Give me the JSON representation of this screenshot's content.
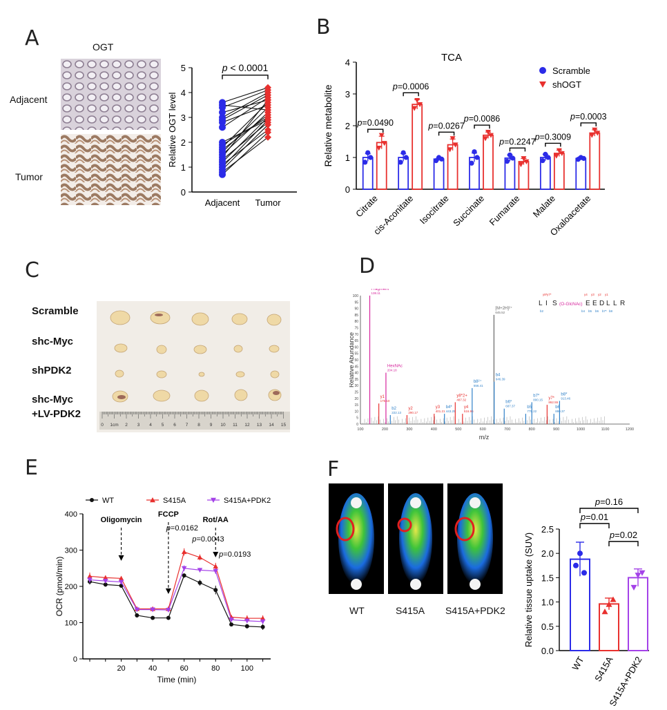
{
  "panels": {
    "A": {
      "letter": "A",
      "ihc_title": "OGT",
      "row_labels": [
        "Adjacent",
        "Tumor"
      ],
      "chart": {
        "type": "scatter",
        "ylabel": "Relative OGT level",
        "ylim": [
          0,
          5
        ],
        "yticks": [
          "0",
          "1",
          "2",
          "3",
          "4",
          "5"
        ],
        "categories": [
          "Adjacent",
          "Tumor"
        ],
        "pvalue": "p < 0.0001",
        "pairs": [
          [
            0.7,
            2.4
          ],
          [
            0.9,
            2.7
          ],
          [
            1.0,
            2.9
          ],
          [
            1.1,
            2.5
          ],
          [
            1.2,
            3.0
          ],
          [
            1.3,
            2.8
          ],
          [
            1.5,
            3.2
          ],
          [
            1.6,
            3.4
          ],
          [
            1.7,
            3.1
          ],
          [
            1.8,
            3.6
          ],
          [
            1.9,
            3.0
          ],
          [
            2.6,
            3.8
          ],
          [
            2.8,
            3.5
          ],
          [
            2.9,
            3.9
          ],
          [
            3.0,
            4.0
          ],
          [
            3.2,
            3.7
          ],
          [
            3.4,
            4.1
          ],
          [
            3.5,
            3.3
          ],
          [
            3.6,
            4.2
          ],
          [
            2.0,
            2.9
          ],
          [
            1.4,
            3.7
          ],
          [
            0.8,
            2.2
          ]
        ],
        "colors": {
          "adjacent": "#2b2be8",
          "tumor": "#e8302e"
        }
      }
    },
    "B": {
      "letter": "B",
      "chart": {
        "type": "bar",
        "title": "TCA",
        "ylabel": "Relative metabolite",
        "ylim": [
          0,
          4
        ],
        "yticks": [
          "0",
          "1",
          "2",
          "3",
          "4"
        ],
        "categories": [
          "Citrate",
          "cis-Aconitate",
          "Isocitrate",
          "Succinate",
          "Fumarate",
          "Malate",
          "Oxaloacetate"
        ],
        "series": [
          {
            "name": "Scramble",
            "color": "#2b2be8",
            "values": [
              1.0,
              1.0,
              0.95,
              1.0,
              0.98,
              1.0,
              0.97
            ],
            "err": [
              0.12,
              0.12,
              0.05,
              0.14,
              0.1,
              0.1,
              0.05
            ],
            "points": [
              [
                0.85,
                1.15,
                1.0
              ],
              [
                0.85,
                1.15,
                1.0
              ],
              [
                0.9,
                1.0,
                0.95
              ],
              [
                0.82,
                1.18,
                1.0
              ],
              [
                0.88,
                1.08,
                0.98
              ],
              [
                0.9,
                1.1,
                1.0
              ],
              [
                0.94,
                1.0,
                0.97
              ]
            ]
          },
          {
            "name": "shOGT",
            "color": "#e8302e",
            "values": [
              1.47,
              2.67,
              1.4,
              1.7,
              0.87,
              1.13,
              1.77
            ],
            "err": [
              0.2,
              0.15,
              0.18,
              0.1,
              0.1,
              0.1,
              0.1
            ],
            "points": [
              [
                1.3,
                1.7,
                1.45
              ],
              [
                2.55,
                2.8,
                2.67
              ],
              [
                1.25,
                1.6,
                1.4
              ],
              [
                1.6,
                1.8,
                1.7
              ],
              [
                0.78,
                0.97,
                0.87
              ],
              [
                1.05,
                1.22,
                1.13
              ],
              [
                1.7,
                1.87,
                1.77
              ]
            ]
          }
        ],
        "pvalues": [
          "p=0.0490",
          "p=0.0006",
          "p=0.0267",
          "p=0.0086",
          "p=0.2247",
          "p=0.3009",
          "p=0.0003"
        ],
        "legend_position": "top-right"
      }
    },
    "C": {
      "letter": "C",
      "row_labels": [
        "Scramble",
        "shc-Myc",
        "shPDK2",
        "shc-Myc",
        "+LV-PDK2"
      ],
      "ruler_labels": [
        "0",
        "1cm",
        "2",
        "3",
        "4",
        "5",
        "6",
        "7",
        "8",
        "9",
        "10",
        "11",
        "12",
        "13",
        "14",
        "15"
      ]
    },
    "D": {
      "letter": "D",
      "chart": {
        "type": "bar",
        "xlabel": "m/z",
        "ylabel": "Relative Abundance",
        "xlim": [
          100,
          1200
        ],
        "ylim": [
          0,
          100
        ],
        "xticks": [
          "100",
          "200",
          "300",
          "400",
          "500",
          "600",
          "700",
          "800",
          "900",
          "1000",
          "1100",
          "1200"
        ],
        "yticks": [
          "0",
          "5",
          "10",
          "15",
          "20",
          "25",
          "30",
          "35",
          "40",
          "45",
          "50",
          "55",
          "60",
          "65",
          "70",
          "75",
          "80",
          "85",
          "90",
          "95",
          "100"
        ],
        "peaks": [
          {
            "mz": 138.11,
            "h": 100,
            "label": "HexNAc\nFragment\n138.11",
            "color": "#d6249c"
          },
          {
            "mz": 204.18,
            "h": 40,
            "label": "HexNAc\n204.18",
            "color": "#d6249c"
          },
          {
            "mz": 175.1,
            "h": 16,
            "label": "y1\n175.10",
            "color": "#e8302e"
          },
          {
            "mz": 222.13,
            "h": 7,
            "label": "b2\n222.13",
            "color": "#2f80c8"
          },
          {
            "mz": 290.17,
            "h": 7,
            "label": "y2\n290.17",
            "color": "#e8302e"
          },
          {
            "mz": 401.21,
            "h": 8,
            "label": "y3\n401.21",
            "color": "#e8302e"
          },
          {
            "mz": 443.25,
            "h": 8,
            "label": "b4*\n443.25",
            "color": "#2f80c8"
          },
          {
            "mz": 487.32,
            "h": 17,
            "label": "y8*2+\n487.32",
            "color": "#e8302e"
          },
          {
            "mz": 516.96,
            "h": 8,
            "label": "y4\n516.96",
            "color": "#e8302e"
          },
          {
            "mz": 556.41,
            "h": 28,
            "label": "b8²⁺\n556.41",
            "color": "#2f80c8"
          },
          {
            "mz": 645.52,
            "h": 85,
            "label": "[M+2H]²⁺\n645.52",
            "color": "#666666"
          },
          {
            "mz": 646.39,
            "h": 33,
            "label": "b4\n646.39",
            "color": "#2f80c8"
          },
          {
            "mz": 687.37,
            "h": 12,
            "label": "b6*\n687.37",
            "color": "#2f80c8"
          },
          {
            "mz": 775.22,
            "h": 8,
            "label": "b5\n775.22",
            "color": "#2f80c8"
          },
          {
            "mz": 800.15,
            "h": 17,
            "label": "b7*\n800.15",
            "color": "#2f80c8"
          },
          {
            "mz": 862.55,
            "h": 15,
            "label": "y7*\n862.55",
            "color": "#e8302e"
          },
          {
            "mz": 890.37,
            "h": 8,
            "label": "b6\n890.37",
            "color": "#2f80c8"
          },
          {
            "mz": 913.46,
            "h": 18,
            "label": "b8*\n913.46",
            "color": "#2f80c8"
          }
        ],
        "sequence": [
          "L",
          "I",
          "S",
          "(O-GlcNAc)",
          "E",
          "E",
          "D",
          "L",
          "L",
          "R"
        ],
        "y_ions": [
          "y8*",
          "y7*",
          "y4",
          "y3",
          "y2",
          "y1"
        ],
        "b_ions": [
          "b2",
          "b4",
          "b5",
          "b6",
          "b7*",
          "b8"
        ]
      }
    },
    "E": {
      "letter": "E",
      "chart": {
        "type": "line",
        "xlabel": "Time (min)",
        "ylabel": "OCR (pmol/min)",
        "xlim": [
          0,
          115
        ],
        "ylim": [
          0,
          400
        ],
        "xticks": [
          "20",
          "40",
          "60",
          "80",
          "100"
        ],
        "yticks": [
          "0",
          "100",
          "200",
          "300",
          "400"
        ],
        "x": [
          0,
          10,
          20,
          30,
          40,
          50,
          60,
          70,
          80,
          90,
          100,
          110
        ],
        "series": [
          {
            "name": "WT",
            "color": "#111111",
            "marker": "circle",
            "values": [
              213,
              205,
              202,
              120,
              113,
              113,
              230,
              210,
              190,
              95,
              90,
              88
            ],
            "err": [
              8,
              6,
              6,
              6,
              5,
              5,
              6,
              8,
              12,
              4,
              6,
              8
            ]
          },
          {
            "name": "S415A",
            "color": "#e8302e",
            "marker": "triangle-up",
            "values": [
              228,
              224,
              222,
              138,
              138,
              138,
              295,
              280,
              255,
              115,
              112,
              112
            ],
            "err": [
              10,
              6,
              6,
              6,
              6,
              6,
              10,
              8,
              10,
              6,
              8,
              8
            ]
          },
          {
            "name": "S415A+PDK2",
            "color": "#a442e8",
            "marker": "triangle-down",
            "values": [
              218,
              215,
              212,
              136,
              136,
              135,
              250,
              245,
              242,
              108,
              105,
              103
            ],
            "err": [
              8,
              6,
              6,
              6,
              6,
              6,
              8,
              6,
              8,
              6,
              6,
              6
            ]
          }
        ],
        "injections": [
          {
            "label": "Oligomycin",
            "x": 20
          },
          {
            "label": "FCCP",
            "x": 50
          },
          {
            "label": "Rot/AA",
            "x": 80
          }
        ],
        "pvalues": [
          "p=0.0162",
          "p=0.0043",
          "p=0.0193"
        ]
      }
    },
    "F": {
      "letter": "F",
      "image_labels": [
        "WT",
        "S415A",
        "S415A+PDK2"
      ],
      "chart": {
        "type": "bar",
        "ylabel": "Relative tissue uptake (SUV)",
        "ylim": [
          0,
          2.5
        ],
        "yticks": [
          "0.0",
          "0.5",
          "1.0",
          "1.5",
          "2.0",
          "2.5"
        ],
        "categories": [
          "WT",
          "S415A",
          "S415A+PDK2"
        ],
        "colors": [
          "#2b2be8",
          "#e8302e",
          "#a442e8"
        ],
        "values": [
          1.88,
          0.96,
          1.5
        ],
        "err": [
          0.35,
          0.12,
          0.18
        ],
        "points": [
          [
            1.75,
            2.0,
            1.6
          ],
          [
            0.8,
            0.95,
            1.05
          ],
          [
            1.3,
            1.55,
            1.6
          ]
        ],
        "pvalues": [
          "p=0.16",
          "p=0.01",
          "p=0.02"
        ]
      }
    }
  }
}
